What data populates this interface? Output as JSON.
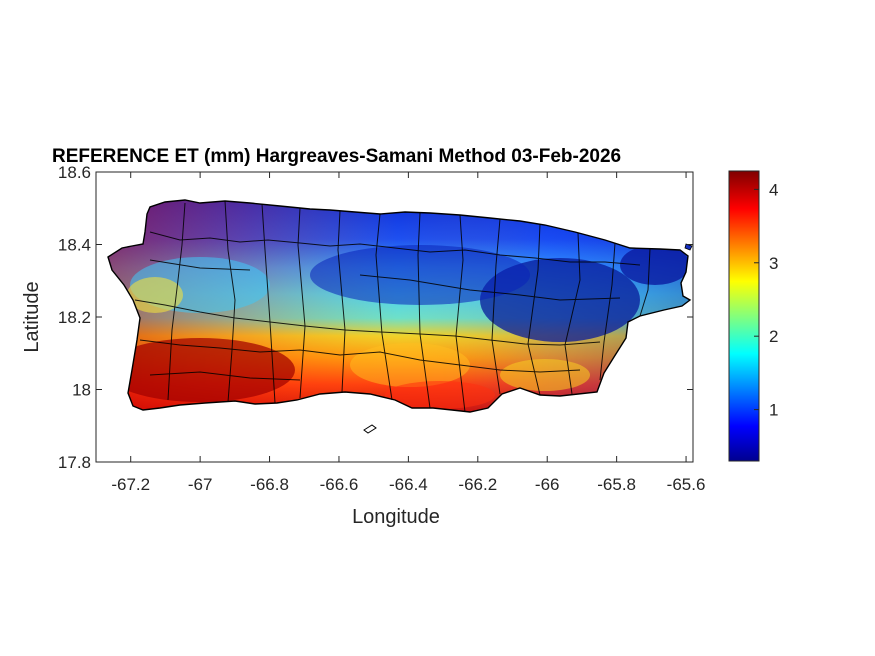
{
  "chart_data": {
    "type": "heatmap",
    "title": "REFERENCE ET (mm) Hargreaves-Samani Method  03-Feb-2026",
    "xlabel": "Longitude",
    "ylabel": "Latitude",
    "xlim": [
      -67.3,
      -65.58
    ],
    "ylim": [
      17.8,
      18.6
    ],
    "x_ticks": [
      -67.2,
      -67,
      -66.8,
      -66.6,
      -66.4,
      -66.2,
      -66,
      -65.8,
      -65.6
    ],
    "x_tick_labels": [
      "-67.2",
      "-67",
      "-66.8",
      "-66.6",
      "-66.4",
      "-66.2",
      "-66",
      "-65.8",
      "-65.6"
    ],
    "y_ticks": [
      17.8,
      18,
      18.2,
      18.4,
      18.6
    ],
    "y_tick_labels": [
      "17.8",
      "18",
      "18.2",
      "18.4",
      "18.6"
    ],
    "colorbar": {
      "colormap": "jet",
      "range": [
        0.3,
        4.25
      ],
      "ticks": [
        1,
        2,
        3,
        4
      ],
      "tick_labels": [
        "1",
        "2",
        "3",
        "4"
      ]
    },
    "grid": false,
    "region": "Puerto Rico (municipality boundaries)",
    "bands": [
      {
        "lat": 18.47,
        "value": 0.8
      },
      {
        "lat": 18.36,
        "value": 1.7
      },
      {
        "lat": 18.27,
        "value": 1.3
      },
      {
        "lat": 18.18,
        "value": 2.2
      },
      {
        "lat": 18.1,
        "value": 3.2
      },
      {
        "lat": 18.02,
        "value": 3.6
      },
      {
        "lat": 17.95,
        "value": 3.8
      }
    ],
    "west_south_max": 4.2,
    "east_north_min": 0.4
  }
}
